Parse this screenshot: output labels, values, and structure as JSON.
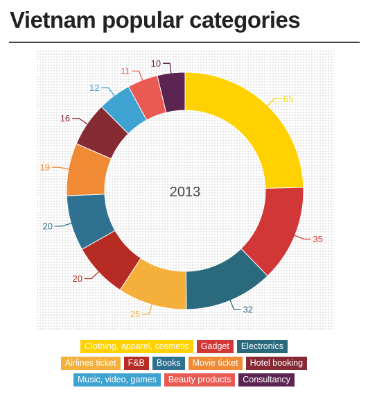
{
  "title": "Vietnam popular categories",
  "chart_data": {
    "type": "pie",
    "variant": "donut",
    "center_label": "2013",
    "slices": [
      {
        "label": "Clothing, apparel, cosmetic",
        "value": 65,
        "color": "#FFD100"
      },
      {
        "label": "Gadget",
        "value": 35,
        "color": "#D23738"
      },
      {
        "label": "Electronics",
        "value": 32,
        "color": "#2B6A7D"
      },
      {
        "label": "Airlines ticket",
        "value": 25,
        "color": "#F4B03B"
      },
      {
        "label": "F&B",
        "value": 20,
        "color": "#B62B23"
      },
      {
        "label": "Books",
        "value": 20,
        "color": "#2E7190"
      },
      {
        "label": "Movie ticket",
        "value": 19,
        "color": "#F08A35"
      },
      {
        "label": "Hotel booking",
        "value": 16,
        "color": "#862A34"
      },
      {
        "label": "Music, video, games",
        "value": 12,
        "color": "#3FA3D2"
      },
      {
        "label": "Beauty products",
        "value": 11,
        "color": "#EA5A52"
      },
      {
        "label": "Consultancy",
        "value": 10,
        "color": "#5C2451"
      }
    ],
    "legend_rows": [
      [
        0,
        1,
        2
      ],
      [
        3,
        4,
        5,
        6,
        7
      ],
      [
        8,
        9,
        10
      ]
    ]
  }
}
